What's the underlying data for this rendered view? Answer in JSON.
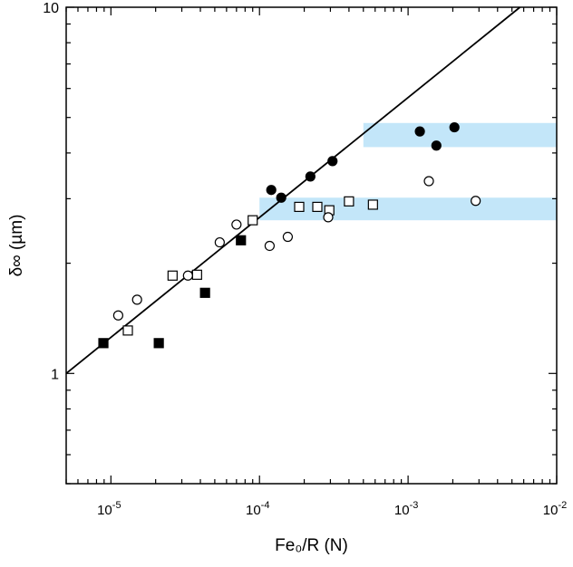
{
  "chart_data": {
    "type": "scatter",
    "title": "",
    "xlabel": "Fe₀/R (N)",
    "ylabel": "δ∞ (µm)",
    "x_scale": "log",
    "y_scale": "log",
    "xlim": [
      5e-06,
      0.01
    ],
    "ylim": [
      0.5,
      10
    ],
    "grid": false,
    "x_ticks": [
      {
        "value": 1e-05,
        "base": "10",
        "exp": "-5"
      },
      {
        "value": 0.0001,
        "base": "10",
        "exp": "-4"
      },
      {
        "value": 0.001,
        "base": "10",
        "exp": "-3"
      },
      {
        "value": 0.01,
        "base": "10",
        "exp": "-2"
      }
    ],
    "y_ticks": [
      {
        "value": 1,
        "label": "1"
      },
      {
        "value": 10,
        "label": "10"
      }
    ],
    "bands": [
      {
        "x": [
          0.0001,
          0.01
        ],
        "y": [
          2.62,
          3.02
        ],
        "color": "#c3e6f9"
      },
      {
        "x": [
          0.0005,
          0.01
        ],
        "y": [
          4.15,
          4.83
        ],
        "color": "#c3e6f9"
      }
    ],
    "fit_line": {
      "x": [
        5e-06,
        0.00566
      ],
      "y": [
        1.0,
        10.0
      ],
      "color": "#000000"
    },
    "series": [
      {
        "marker": "square",
        "fill": "#000000",
        "x": [
          8.9e-06,
          2.1e-05,
          4.3e-05,
          7.5e-05
        ],
        "y": [
          1.21,
          1.21,
          1.66,
          2.31
        ]
      },
      {
        "marker": "square",
        "fill": "#ffffff",
        "x": [
          1.3e-05,
          2.6e-05,
          3.8e-05,
          9e-05,
          0.000185,
          0.000245,
          0.000295,
          0.0004,
          0.00058
        ],
        "y": [
          1.31,
          1.85,
          1.86,
          2.62,
          2.85,
          2.85,
          2.79,
          2.95,
          2.89
        ]
      },
      {
        "marker": "circle",
        "fill": "#ffffff",
        "x": [
          1.12e-05,
          1.5e-05,
          3.3e-05,
          5.4e-05,
          7e-05,
          0.000117,
          0.000155,
          0.00029,
          0.00138,
          0.00285
        ],
        "y": [
          1.44,
          1.59,
          1.85,
          2.28,
          2.55,
          2.23,
          2.36,
          2.67,
          3.35,
          2.96
        ]
      },
      {
        "marker": "circle",
        "fill": "#000000",
        "x": [
          0.00012,
          0.00014,
          0.00022,
          0.00031,
          0.0012,
          0.00155,
          0.00205
        ],
        "y": [
          3.17,
          3.02,
          3.45,
          3.8,
          4.58,
          4.19,
          4.7
        ]
      }
    ]
  }
}
